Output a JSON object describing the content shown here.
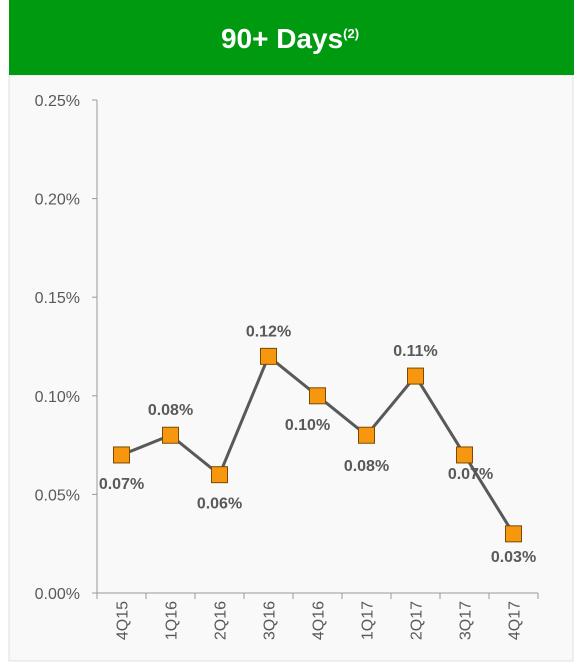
{
  "chart_data": {
    "type": "line",
    "title": "90+ Days",
    "title_superscript": "(2)",
    "categories": [
      "4Q15",
      "1Q16",
      "2Q16",
      "3Q16",
      "4Q16",
      "1Q17",
      "2Q17",
      "3Q17",
      "4Q17"
    ],
    "series": [
      {
        "name": "90+ Days",
        "color": "#595959",
        "marker_color": "#f7960f",
        "values": [
          0.07,
          0.08,
          0.06,
          0.12,
          0.1,
          0.08,
          0.11,
          0.07,
          0.03
        ],
        "value_labels": [
          "0.07%",
          "0.08%",
          "0.06%",
          "0.12%",
          "0.10%",
          "0.08%",
          "0.11%",
          "0.07%",
          "0.03%"
        ]
      }
    ],
    "ylim": [
      0,
      0.25
    ],
    "yticks": [
      {
        "value": 0,
        "label": "0.00%"
      },
      {
        "value": 0.05,
        "label": "0.05%"
      },
      {
        "value": 0.1,
        "label": "0.10%"
      },
      {
        "value": 0.15,
        "label": "0.15%"
      },
      {
        "value": 0.2,
        "label": "0.20%"
      },
      {
        "value": 0.25,
        "label": "0.25%"
      }
    ],
    "grid": false,
    "header_color": "#009a10"
  }
}
